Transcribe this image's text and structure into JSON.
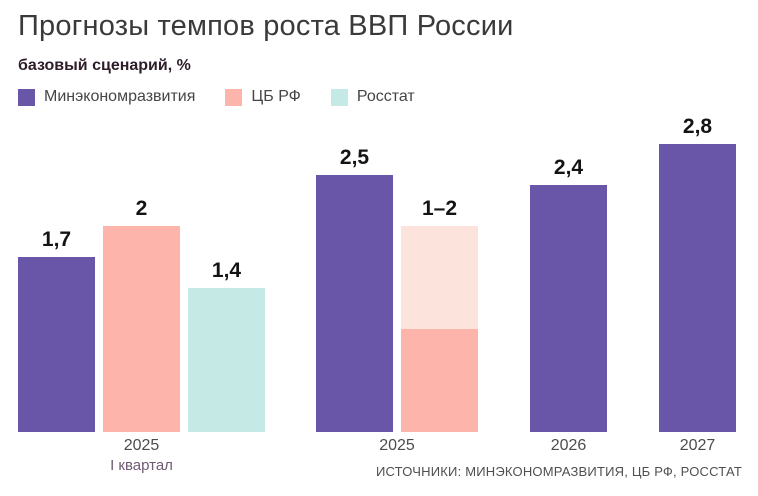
{
  "title": "Прогнозы темпов роста ВВП России",
  "subtitle": "базовый сценарий, %",
  "source": "ИСТОЧНИКИ: МИНЭКОНОМРАЗВИТИЯ, ЦБ РФ, РОССТАТ",
  "colors": {
    "minec": "#6956a8",
    "cbrf": "#fcb4ab",
    "cbrf_range": "#fce3dc",
    "rosstat": "#c5eae5"
  },
  "legend": [
    {
      "label": "Минэкономразвития",
      "color": "#6956a8"
    },
    {
      "label": "ЦБ РФ",
      "color": "#fcb4ab"
    },
    {
      "label": "Росстат",
      "color": "#c5eae5"
    }
  ],
  "chart_data": {
    "type": "bar",
    "unit": "%",
    "ylim": [
      0,
      3
    ],
    "grid": false,
    "legend_position": "top-left",
    "series_names": [
      "Минэкономразвития",
      "ЦБ РФ",
      "Росстат"
    ],
    "groups": [
      {
        "category": "2025",
        "subcategory": "I квартал",
        "bars": [
          {
            "series": "Минэкономразвития",
            "value": 1.7,
            "label": "1,7",
            "color": "#6956a8"
          },
          {
            "series": "ЦБ РФ",
            "value": 2,
            "label": "2",
            "color": "#fcb4ab"
          },
          {
            "series": "Росстат",
            "value": 1.4,
            "label": "1,4",
            "color": "#c5eae5"
          }
        ]
      },
      {
        "category": "2025",
        "subcategory": "",
        "bars": [
          {
            "series": "Минэкономразвития",
            "value": 2.5,
            "label": "2,5",
            "color": "#6956a8"
          },
          {
            "series": "ЦБ РФ",
            "value_min": 1,
            "value_max": 2,
            "label": "1–2",
            "color": "#fcb4ab",
            "range_color": "#fce3dc"
          }
        ]
      },
      {
        "category": "2026",
        "subcategory": "",
        "bars": [
          {
            "series": "Минэкономразвития",
            "value": 2.4,
            "label": "2,4",
            "color": "#6956a8"
          }
        ]
      },
      {
        "category": "2027",
        "subcategory": "",
        "bars": [
          {
            "series": "Минэкономразвития",
            "value": 2.8,
            "label": "2,8",
            "color": "#6956a8"
          }
        ]
      }
    ]
  }
}
